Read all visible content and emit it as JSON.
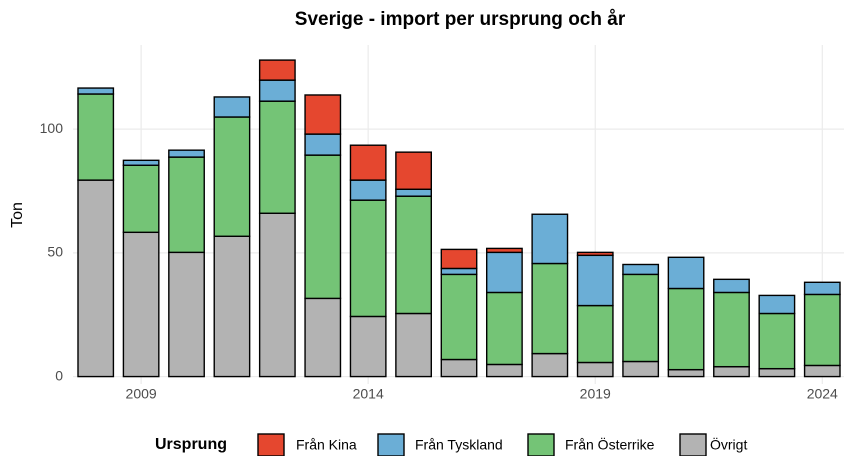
{
  "chart_data": {
    "type": "stacked_bar",
    "title": "Sverige - import per ursprung och år",
    "y_label": "Ton",
    "legend_title": "Ursprung",
    "legend_position": "bottom",
    "grid": true,
    "x": [
      2008,
      2009,
      2010,
      2011,
      2012,
      2013,
      2014,
      2015,
      2016,
      2017,
      2018,
      2019,
      2020,
      2021,
      2022,
      2023,
      2024
    ],
    "xlim": [
      2007.5,
      2024.5
    ],
    "xticks": [
      2009,
      2014,
      2019,
      2024
    ],
    "ylim": [
      -3,
      134
    ],
    "yticks": [
      0,
      50,
      100
    ],
    "series": [
      {
        "name": "Från Kina",
        "color": "#e5472f",
        "values": [
          0,
          0,
          0,
          0,
          8.1,
          15.8,
          14.1,
          15,
          7.7,
          1.6,
          0,
          1.2,
          0,
          0,
          0,
          0,
          0
        ]
      },
      {
        "name": "Från Tyskland",
        "color": "#6baed6",
        "values": [
          2.4,
          2,
          2.8,
          8.1,
          8.5,
          8.5,
          8.1,
          2.8,
          2.4,
          16.2,
          19.9,
          20.3,
          4,
          12.6,
          5.3,
          7.3,
          4.9
        ]
      },
      {
        "name": "Från Österrike",
        "color": "#74c476",
        "values": [
          34.8,
          27.1,
          38.5,
          48.2,
          45.3,
          57.9,
          47,
          47.4,
          34.4,
          29.1,
          36.4,
          23,
          35.2,
          32.8,
          30,
          22.3,
          28.7
        ]
      },
      {
        "name": "Övrigt",
        "color": "#b3b3b3",
        "values": [
          79.4,
          58.3,
          50.2,
          56.7,
          66,
          31.6,
          24.3,
          25.5,
          6.9,
          4.9,
          9.3,
          5.7,
          6.1,
          2.8,
          4,
          3.2,
          4.5
        ]
      }
    ]
  }
}
